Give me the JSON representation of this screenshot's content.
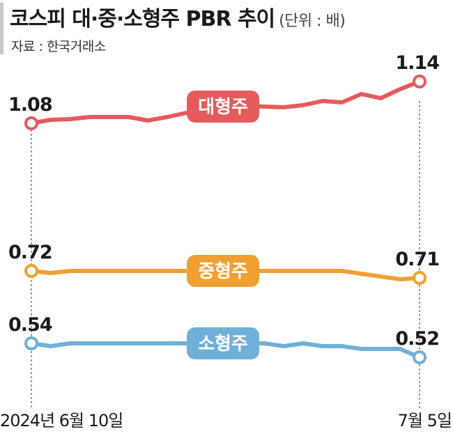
{
  "header": {
    "title": "코스피 대·중·소형주 PBR 추이",
    "unit": "(단위 : 배)",
    "source": "자료 : 한국거래소"
  },
  "chart_data": {
    "type": "line",
    "x_start_label": "2024년 6월 10일",
    "x_end_label": "7월 5일",
    "series": [
      {
        "name": "대형주",
        "color": "#e55b5b",
        "start_label": "1.08",
        "end_label": "1.14",
        "values": [
          1.08,
          1.085,
          1.086,
          1.089,
          1.089,
          1.089,
          1.084,
          1.089,
          1.095,
          1.093,
          1.104,
          1.105,
          1.104,
          1.103,
          1.106,
          1.112,
          1.11,
          1.122,
          1.116,
          1.129,
          1.14
        ]
      },
      {
        "name": "중형주",
        "color": "#f0a030",
        "start_label": "0.72",
        "end_label": "0.71",
        "values": [
          0.72,
          0.717,
          0.72,
          0.72,
          0.72,
          0.72,
          0.72,
          0.72,
          0.72,
          0.72,
          0.72,
          0.72,
          0.72,
          0.72,
          0.72,
          0.72,
          0.72,
          0.716,
          0.712,
          0.708,
          0.71
        ]
      },
      {
        "name": "소형주",
        "color": "#6fb0d8",
        "start_label": "0.54",
        "end_label": "0.52",
        "values": [
          0.54,
          0.536,
          0.54,
          0.54,
          0.54,
          0.54,
          0.54,
          0.54,
          0.54,
          0.54,
          0.54,
          0.54,
          0.54,
          0.536,
          0.54,
          0.536,
          0.536,
          0.532,
          0.532,
          0.532,
          0.52
        ]
      }
    ]
  }
}
